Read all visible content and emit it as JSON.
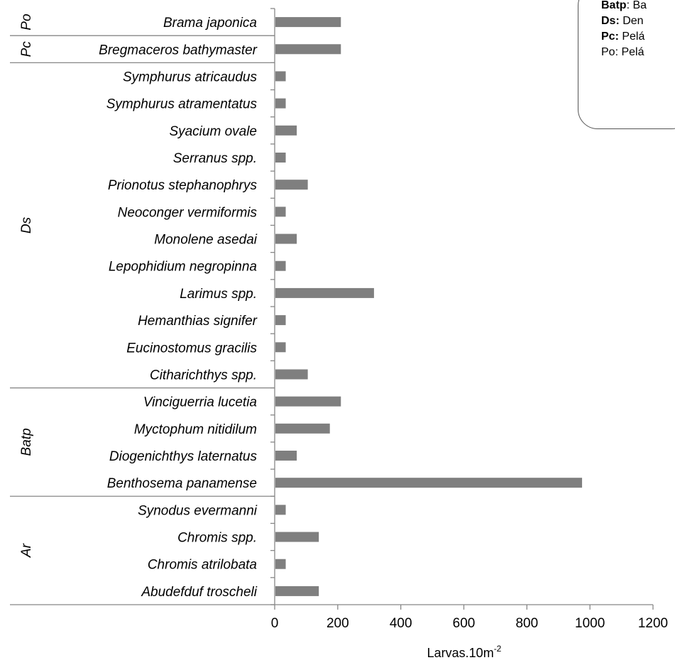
{
  "chart_data": {
    "type": "bar",
    "orientation": "horizontal",
    "categories": [
      "Abudefduf troscheli",
      "Chromis atrilobata",
      "Chromis spp.",
      "Synodus evermanni",
      "Benthosema panamense",
      "Diogenichthys laternatus",
      "Myctophum nitidilum",
      "Vinciguerria lucetia",
      "Citharichthys spp.",
      "Eucinostomus gracilis",
      "Hemanthias signifer",
      "Larimus spp.",
      "Lepophidium negropinna",
      "Monolene asedai",
      "Neoconger vermiformis",
      "Prionotus stephanophrys",
      "Serranus spp.",
      "Syacium ovale",
      "Symphurus atramentatus",
      "Symphurus atricaudus",
      "Bregmaceros bathymaster",
      "Brama japonica"
    ],
    "values": [
      140,
      35,
      140,
      35,
      975,
      70,
      175,
      210,
      105,
      35,
      35,
      315,
      35,
      70,
      35,
      105,
      35,
      70,
      35,
      35,
      210,
      210
    ],
    "groups": [
      {
        "label": "Ar",
        "count": 4
      },
      {
        "label": "Batp",
        "count": 4
      },
      {
        "label": "Ds",
        "count": 12
      },
      {
        "label": "Pc",
        "count": 1
      },
      {
        "label": "Po",
        "count": 1
      }
    ],
    "xlim": [
      0,
      1200
    ],
    "xticks": [
      "0",
      "200",
      "400",
      "600",
      "800",
      "1000",
      "1200"
    ],
    "xlabel": "Larvas.10m",
    "xlabel_sup": "-2",
    "bar_color": "#7f7f7f",
    "grid": false
  },
  "legend": {
    "items": [
      {
        "abbr": "Batp",
        "sep": ": ",
        "text": "Ba"
      },
      {
        "abbr": "Ds:",
        "sep": " ",
        "text": "Den"
      },
      {
        "abbr": "Pc:",
        "sep": " ",
        "text": "Pelá"
      },
      {
        "abbr": "",
        "sep": "",
        "text": "Po: Pelá"
      }
    ]
  }
}
